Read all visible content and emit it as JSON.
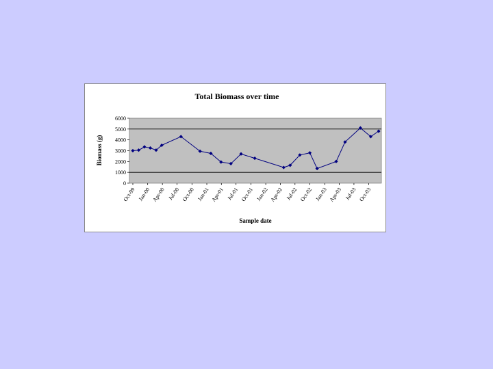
{
  "chart_data": {
    "type": "line",
    "title": "Total Biomass over time",
    "xlabel": "Sample date",
    "ylabel": "Biomass (g)",
    "ylim": [
      0,
      6000
    ],
    "y_ticks": [
      0,
      1000,
      2000,
      3000,
      4000,
      5000,
      6000
    ],
    "x_range": [
      "1999-10-01",
      "2003-12-01"
    ],
    "x_ticks": [
      {
        "label": "Oct-99",
        "date": "1999-10-01"
      },
      {
        "label": "Jan-00",
        "date": "2000-01-01"
      },
      {
        "label": "Apr-00",
        "date": "2000-04-01"
      },
      {
        "label": "Jul-00",
        "date": "2000-07-01"
      },
      {
        "label": "Oct-00",
        "date": "2000-10-01"
      },
      {
        "label": "Jan-01",
        "date": "2001-01-01"
      },
      {
        "label": "Apr-01",
        "date": "2001-04-01"
      },
      {
        "label": "Jul-01",
        "date": "2001-07-01"
      },
      {
        "label": "Oct-01",
        "date": "2001-10-01"
      },
      {
        "label": "Jan-02",
        "date": "2002-01-01"
      },
      {
        "label": "Apr-02",
        "date": "2002-04-01"
      },
      {
        "label": "Jul-02",
        "date": "2002-07-01"
      },
      {
        "label": "Oct-02",
        "date": "2002-10-01"
      },
      {
        "label": "Jan-03",
        "date": "2003-01-01"
      },
      {
        "label": "Apr-03",
        "date": "2003-04-01"
      },
      {
        "label": "Jul-03",
        "date": "2003-07-01"
      },
      {
        "label": "Oct-03",
        "date": "2003-10-01"
      }
    ],
    "gridlines": [
      1000,
      5000
    ],
    "colors": {
      "series": "#000080",
      "plot_area": "#c0c0c0"
    },
    "series": [
      {
        "points": [
          {
            "x": "1999-10-01",
            "y": 3000
          },
          {
            "x": "1999-11-06",
            "y": 3050
          },
          {
            "x": "1999-12-12",
            "y": 3350
          },
          {
            "x": "2000-01-17",
            "y": 3250
          },
          {
            "x": "2000-02-22",
            "y": 3050
          },
          {
            "x": "2000-03-28",
            "y": 3500
          },
          {
            "x": "2000-07-25",
            "y": 4300
          },
          {
            "x": "2000-11-20",
            "y": 2950
          },
          {
            "x": "2001-01-26",
            "y": 2750
          },
          {
            "x": "2001-03-30",
            "y": 1950
          },
          {
            "x": "2001-05-30",
            "y": 1800
          },
          {
            "x": "2001-08-01",
            "y": 2700
          },
          {
            "x": "2001-10-25",
            "y": 2300
          },
          {
            "x": "2002-04-22",
            "y": 1450
          },
          {
            "x": "2002-06-01",
            "y": 1650
          },
          {
            "x": "2002-07-31",
            "y": 2600
          },
          {
            "x": "2002-10-01",
            "y": 2800
          },
          {
            "x": "2002-11-15",
            "y": 1350
          },
          {
            "x": "2003-03-13",
            "y": 2000
          },
          {
            "x": "2003-05-07",
            "y": 3800
          },
          {
            "x": "2003-08-10",
            "y": 5100
          },
          {
            "x": "2003-10-13",
            "y": 4300
          },
          {
            "x": "2003-12-01",
            "y": 4800
          }
        ]
      }
    ]
  }
}
